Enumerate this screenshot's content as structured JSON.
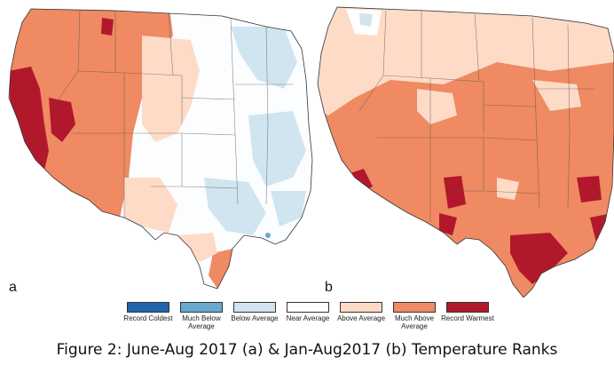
{
  "panels": [
    {
      "label": "a",
      "period": "June-Aug 2017"
    },
    {
      "label": "b",
      "period": "Jan-Aug 2017"
    }
  ],
  "legend": [
    {
      "label": "Record Coldest",
      "color": "#2166ac"
    },
    {
      "label": "Much Below Average",
      "color": "#67a9cf"
    },
    {
      "label": "Below Average",
      "color": "#d1e5f0"
    },
    {
      "label": "Near Average",
      "color": "#ffffff"
    },
    {
      "label": "Above Average",
      "color": "#fddbc7"
    },
    {
      "label": "Much Above Average",
      "color": "#ef8a62"
    },
    {
      "label": "Record Warmest",
      "color": "#b2182b"
    }
  ],
  "caption": "Figure 2: June-Aug 2017 (a) & Jan-Aug2017 (b) Temperature Ranks"
}
